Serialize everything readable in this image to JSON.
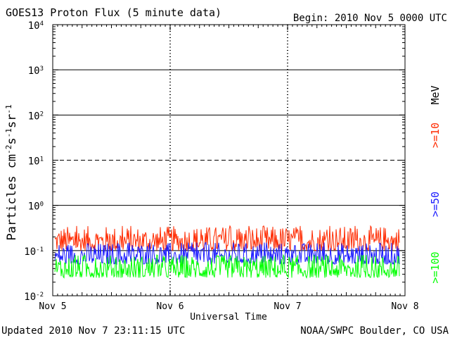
{
  "header": {
    "title": "GOES13 Proton Flux (5 minute data)",
    "begin": "Begin: 2010 Nov 5 0000 UTC"
  },
  "footer": {
    "updated": "Updated 2010 Nov  7 23:11:15 UTC",
    "source": "NOAA/SWPC Boulder, CO USA"
  },
  "chart_data": {
    "type": "line",
    "title": "GOES13 Proton Flux (5 minute data)",
    "xlabel": "Universal Time",
    "ylabel": "Particles cm-2s-1sr-1",
    "yscale": "log",
    "ylim": [
      0.01,
      10000
    ],
    "xlim": [
      "2010-11-05 00:00",
      "2010-11-08 00:00"
    ],
    "x_ticks": [
      "Nov 5",
      "Nov 6",
      "Nov 7",
      "Nov 8"
    ],
    "y_ticks": [
      {
        "base": "10",
        "exp": "-2"
      },
      {
        "base": "10",
        "exp": "-1"
      },
      {
        "base": "10",
        "exp": "0"
      },
      {
        "base": "10",
        "exp": "1"
      },
      {
        "base": "10",
        "exp": "2"
      },
      {
        "base": "10",
        "exp": "3"
      },
      {
        "base": "10",
        "exp": "4"
      }
    ],
    "threshold_line": 10,
    "unit_label": "MeV",
    "series": [
      {
        "name": ">=10",
        "color": "#ff2a00",
        "approx_range": [
          0.1,
          0.35
        ]
      },
      {
        "name": ">=50",
        "color": "#1a1aff",
        "approx_range": [
          0.05,
          0.15
        ]
      },
      {
        "name": ">=100",
        "color": "#00ff00",
        "approx_range": [
          0.025,
          0.08
        ]
      }
    ]
  }
}
